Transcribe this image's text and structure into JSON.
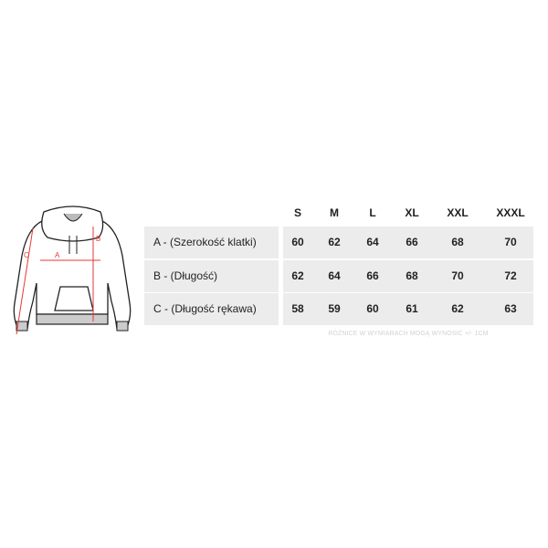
{
  "sizes": [
    "S",
    "M",
    "L",
    "XL",
    "XXL",
    "XXXL"
  ],
  "rows": [
    {
      "label": "A - (Szerokość klatki)",
      "values": [
        "60",
        "62",
        "64",
        "66",
        "68",
        "70"
      ]
    },
    {
      "label": "B - (Długość)",
      "values": [
        "62",
        "64",
        "66",
        "68",
        "70",
        "72"
      ]
    },
    {
      "label": "C - (Długość rękawa)",
      "values": [
        "58",
        "59",
        "60",
        "61",
        "62",
        "63"
      ]
    }
  ],
  "note": "RÓŻNICE W WYMIARACH MOGĄ WYNOSIĆ +/- 1CM",
  "diagram": {
    "labels": {
      "a": "A",
      "b": "B",
      "c": "C"
    },
    "measure_color": "#e53935"
  },
  "colors": {
    "cell_bg": "#ececec"
  }
}
